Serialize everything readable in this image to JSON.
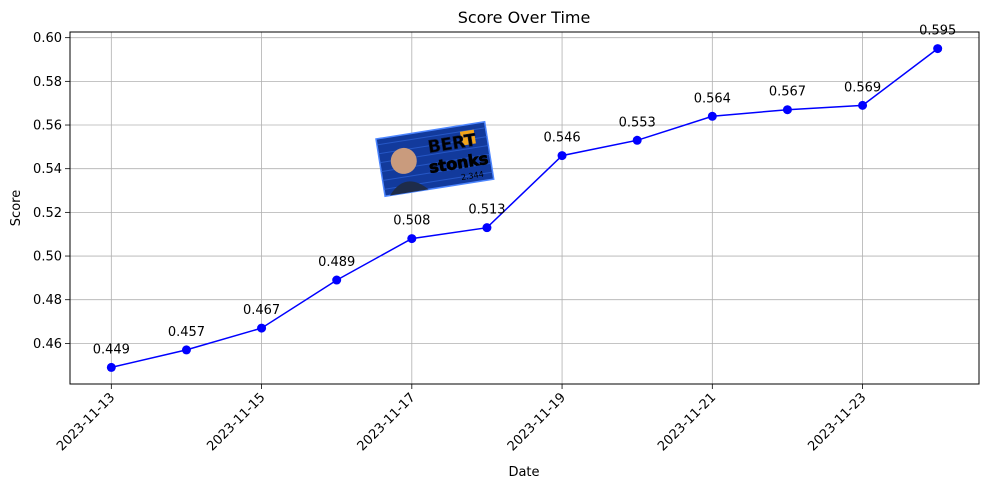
{
  "chart_data": {
    "type": "line",
    "title": "Score Over Time",
    "xlabel": "Date",
    "ylabel": "Score",
    "x": [
      "2023-11-13",
      "2023-11-14",
      "2023-11-15",
      "2023-11-16",
      "2023-11-17",
      "2023-11-18",
      "2023-11-19",
      "2023-11-20",
      "2023-11-21",
      "2023-11-22",
      "2023-11-23",
      "2023-11-24"
    ],
    "x_ticks": [
      "2023-11-13",
      "2023-11-15",
      "2023-11-17",
      "2023-11-19",
      "2023-11-21",
      "2023-11-23"
    ],
    "y_ticks": [
      "0.46",
      "0.48",
      "0.50",
      "0.52",
      "0.54",
      "0.56",
      "0.58",
      "0.60"
    ],
    "ylim": [
      0.4414,
      0.6026
    ],
    "xlim": [
      "2023-11-12T10:48",
      "2023-11-24T13:12"
    ],
    "series": [
      {
        "values": [
          0.449,
          0.457,
          0.467,
          0.489,
          0.508,
          0.513,
          0.546,
          0.553,
          0.564,
          0.567,
          0.569,
          0.595
        ],
        "labels": [
          "0.449",
          "0.457",
          "0.467",
          "0.489",
          "0.508",
          "0.513",
          "0.546",
          "0.553",
          "0.564",
          "0.567",
          "0.569",
          "0.595"
        ],
        "color": "#0000ff",
        "marker": "circle"
      }
    ],
    "grid": true,
    "tick_rotation_deg": 45,
    "image": {
      "text": [
        "BERT",
        "stonks",
        "2.344"
      ]
    }
  }
}
